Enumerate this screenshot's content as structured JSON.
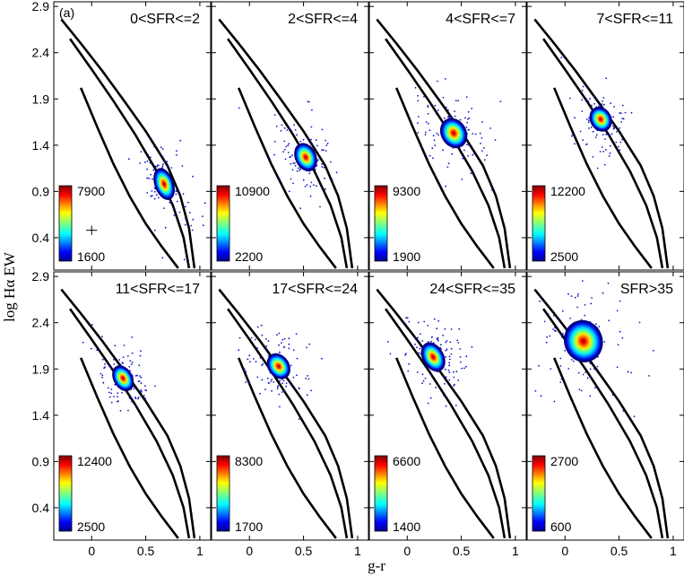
{
  "figure": {
    "panel_label": "(a)",
    "xlabel": "g-r",
    "ylabel": "log Hα EW"
  },
  "chart_data": {
    "type": "scatter",
    "xlabel": "g-r",
    "ylabel": "log Hα EW",
    "xlim": [
      -0.35,
      1.1
    ],
    "ylim": [
      0.05,
      2.95
    ],
    "xticks": [
      {
        "value": 0,
        "label": "0"
      },
      {
        "value": 0.5,
        "label": "0.5"
      },
      {
        "value": 1,
        "label": "1"
      }
    ],
    "yticks": [
      {
        "value": 0.4,
        "label": "0.4"
      },
      {
        "value": 0.9,
        "label": "0.9"
      },
      {
        "value": 1.4,
        "label": "1.4"
      },
      {
        "value": 1.9,
        "label": "1.9"
      },
      {
        "value": 2.4,
        "label": "2.4"
      },
      {
        "value": 2.9,
        "label": "2.9"
      }
    ],
    "grid": false,
    "boundary_curves": [
      {
        "x": [
          -0.28,
          -0.1,
          0.1,
          0.3,
          0.5,
          0.7,
          0.82,
          0.9,
          0.95
        ],
        "y": [
          2.76,
          2.5,
          2.2,
          1.88,
          1.55,
          1.18,
          0.85,
          0.5,
          0.07
        ]
      },
      {
        "x": [
          -0.2,
          0.0,
          0.2,
          0.4,
          0.6,
          0.75,
          0.85,
          0.9
        ],
        "y": [
          2.55,
          2.22,
          1.88,
          1.52,
          1.12,
          0.75,
          0.4,
          0.07
        ]
      },
      {
        "x": [
          -0.1,
          0.05,
          0.2,
          0.35,
          0.5,
          0.65,
          0.8
        ],
        "y": [
          2.02,
          1.6,
          1.2,
          0.85,
          0.55,
          0.3,
          0.07
        ]
      }
    ],
    "panels": [
      {
        "title": "0<SFR<=2",
        "center": [
          0.67,
          0.98
        ],
        "spread": [
          0.08,
          0.17
        ],
        "angle": -20,
        "cbar": {
          "max": "7900",
          "min": "1600"
        },
        "error_bar": {
          "x": 0,
          "y": 0.48,
          "xerr": 0.05,
          "yerr": 0.05
        }
      },
      {
        "title": "2<SFR<=4",
        "center": [
          0.52,
          1.27
        ],
        "spread": [
          0.09,
          0.15
        ],
        "angle": -25,
        "cbar": {
          "max": "10900",
          "min": "2200"
        }
      },
      {
        "title": "4<SFR<=7",
        "center": [
          0.43,
          1.53
        ],
        "spread": [
          0.11,
          0.16
        ],
        "angle": -30,
        "cbar": {
          "max": "9300",
          "min": "1900"
        }
      },
      {
        "title": "7<SFR<=11",
        "center": [
          0.33,
          1.68
        ],
        "spread": [
          0.09,
          0.13
        ],
        "angle": -30,
        "cbar": {
          "max": "12200",
          "min": "2500"
        }
      },
      {
        "title": "11<SFR<=17",
        "center": [
          0.29,
          1.8
        ],
        "spread": [
          0.08,
          0.14
        ],
        "angle": -30,
        "cbar": {
          "max": "12400",
          "min": "2500"
        }
      },
      {
        "title": "17<SFR<=24",
        "center": [
          0.27,
          1.93
        ],
        "spread": [
          0.09,
          0.14
        ],
        "angle": -35,
        "cbar": {
          "max": "8300",
          "min": "1700"
        }
      },
      {
        "title": "24<SFR<=35",
        "center": [
          0.24,
          2.03
        ],
        "spread": [
          0.09,
          0.16
        ],
        "angle": -30,
        "cbar": {
          "max": "6600",
          "min": "1400"
        }
      },
      {
        "title": "SFR>35",
        "center": [
          0.17,
          2.2
        ],
        "spread": [
          0.17,
          0.22
        ],
        "angle": -20,
        "cbar": {
          "max": "2700",
          "min": "600"
        }
      }
    ]
  }
}
